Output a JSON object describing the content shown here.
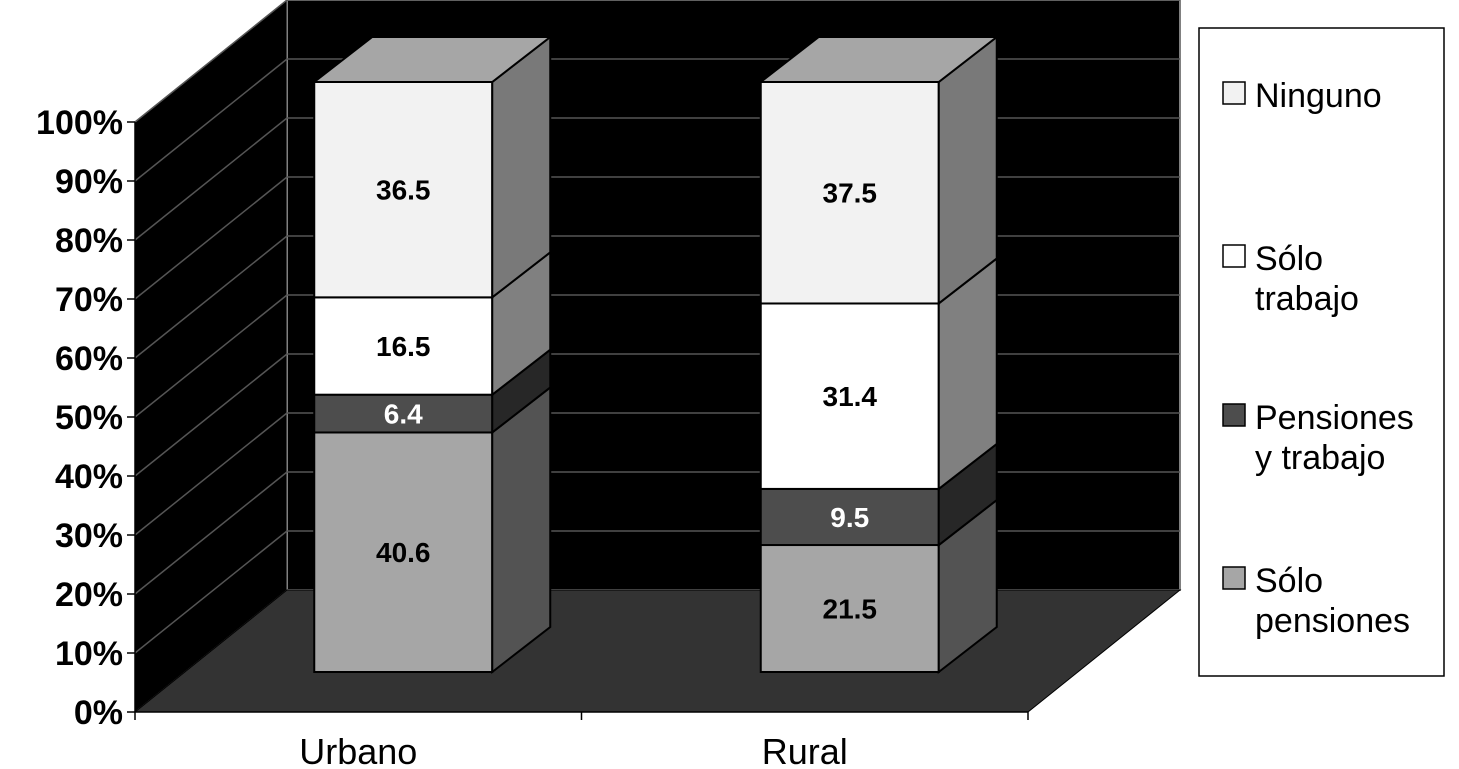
{
  "chart_data": {
    "type": "bar",
    "stacked": true,
    "three_d": true,
    "percent_stacked": true,
    "categories": [
      "Urbano",
      "Rural"
    ],
    "series": [
      {
        "name": "Sólo pensiones",
        "values": [
          40.6,
          21.5
        ],
        "color": "#a6a6a6",
        "label_color": "#000000"
      },
      {
        "name": "Pensiones y trabajo",
        "values": [
          6.4,
          9.5
        ],
        "color": "#4d4d4d",
        "label_color": "#ffffff"
      },
      {
        "name": "Sólo trabajo",
        "values": [
          16.5,
          31.4
        ],
        "color": "#ffffff",
        "label_color": "#000000"
      },
      {
        "name": "Ninguno",
        "values": [
          36.5,
          37.5
        ],
        "color": "#f2f2f2",
        "label_color": "#000000"
      }
    ],
    "y_ticks": [
      "0%",
      "10%",
      "20%",
      "30%",
      "40%",
      "50%",
      "60%",
      "70%",
      "80%",
      "90%",
      "100%"
    ],
    "ylim": [
      0,
      100
    ],
    "grid": true,
    "legend_position": "right",
    "legend_order": [
      "Ninguno",
      "Sólo trabajo",
      "Pensiones y trabajo",
      "Sólo pensiones"
    ],
    "colors": {
      "wall": "#000000",
      "floor": "#333333",
      "gridline": "#555555",
      "legend_border": "#000000"
    }
  }
}
